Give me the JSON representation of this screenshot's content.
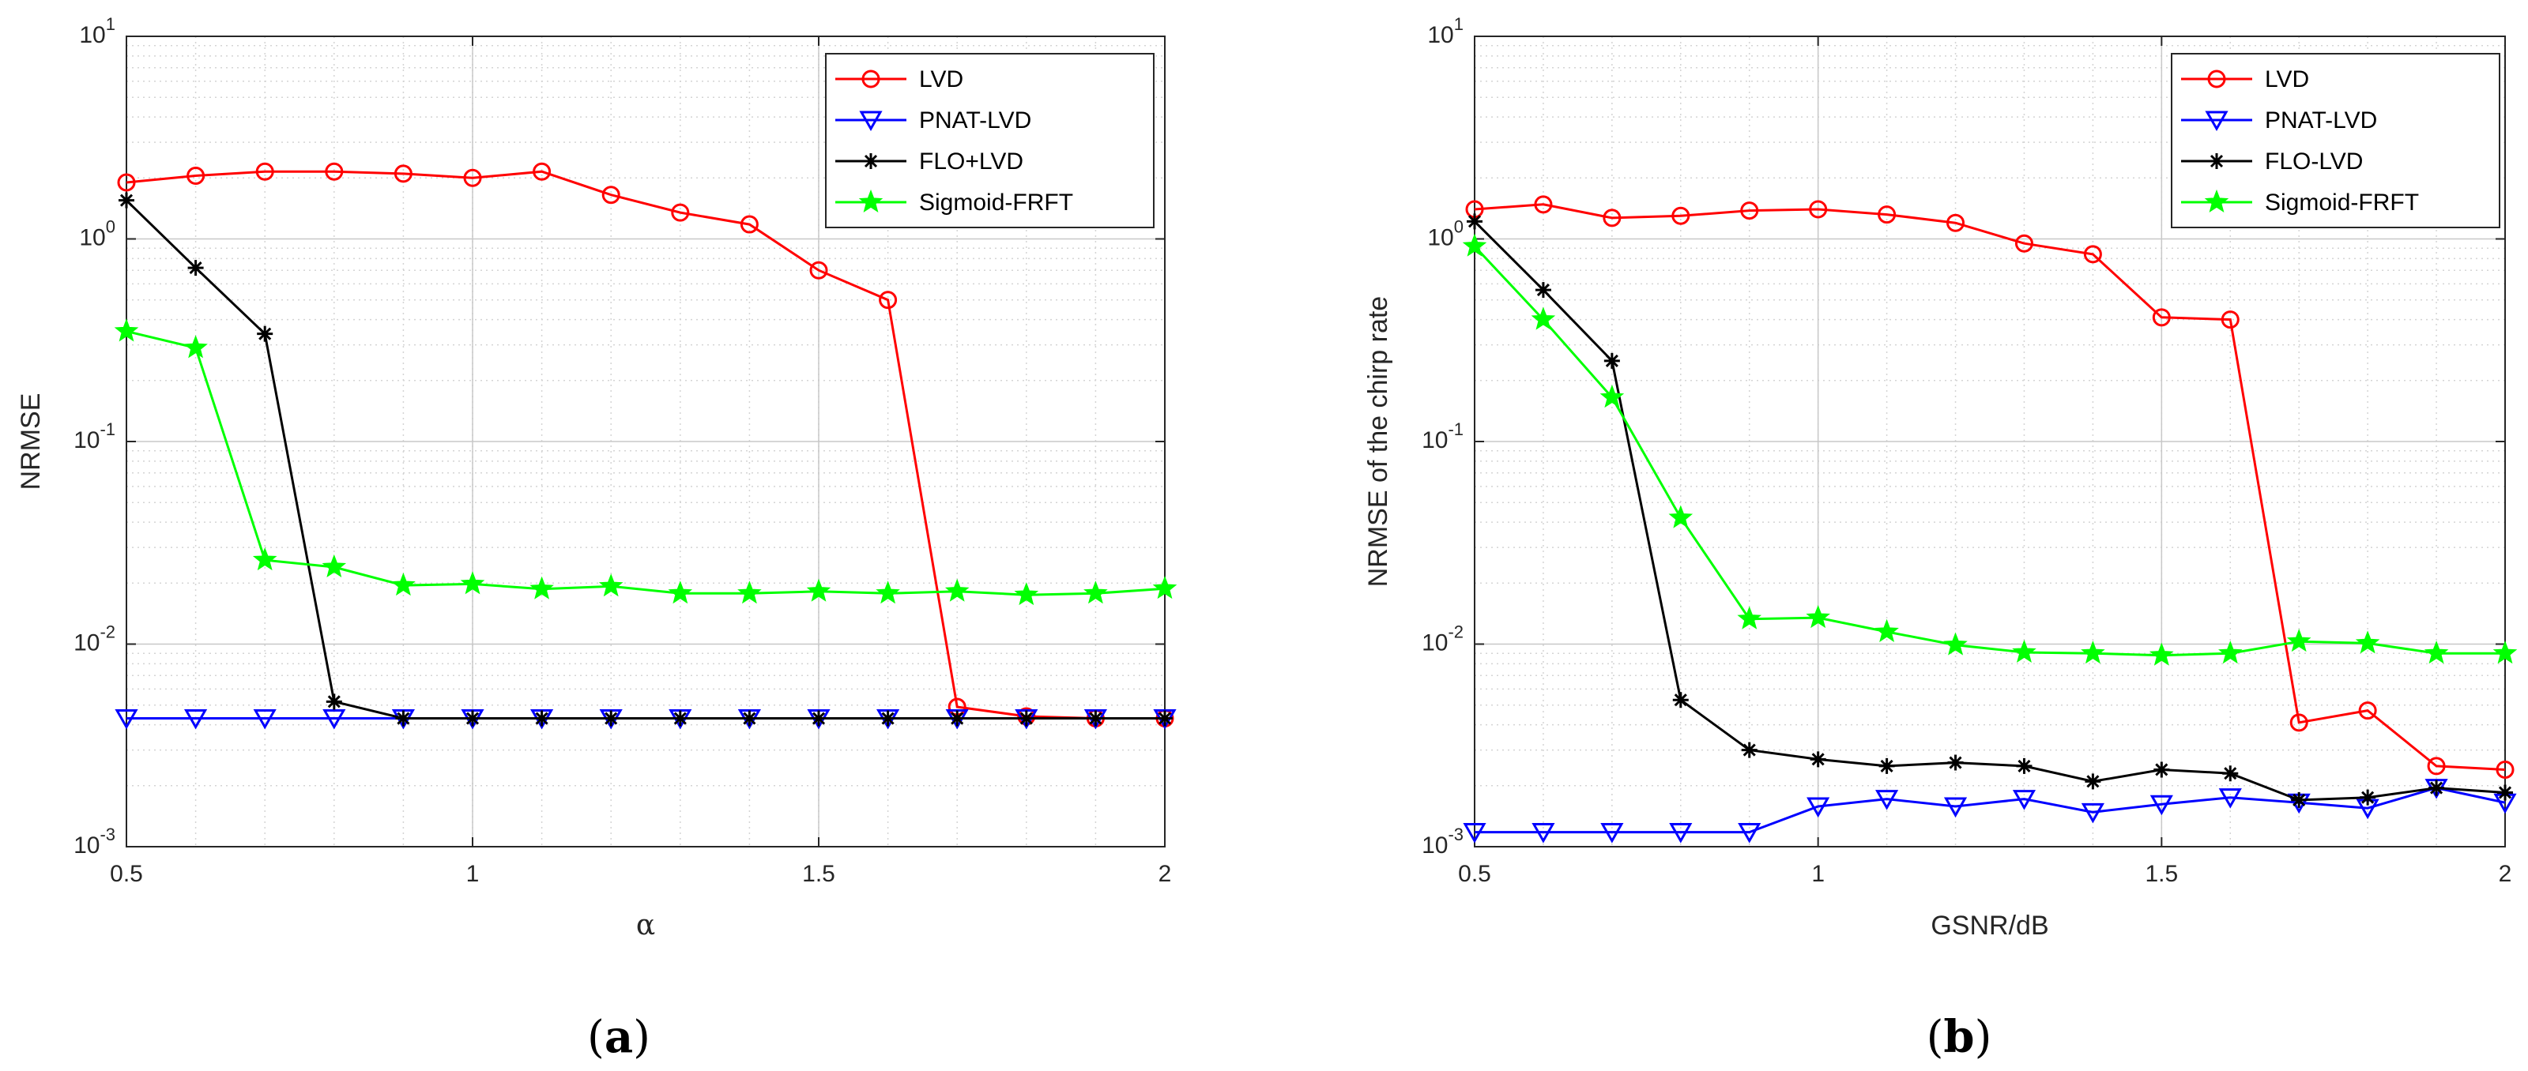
{
  "chart_data": [
    {
      "type": "line",
      "caption": {
        "open": "(",
        "letter": "a",
        "close": ")"
      },
      "xlabel": "α",
      "ylabel": "NRMSE",
      "yscale": "log",
      "xlim": [
        0.5,
        2
      ],
      "ylim": [
        0.001,
        10
      ],
      "grid": true,
      "legend_position": "top-right",
      "x_ticks": [
        0.5,
        1,
        1.5,
        2
      ],
      "x_tick_labels": [
        "0.5",
        "1",
        "1.5",
        "2"
      ],
      "y_ticks": [
        {
          "base": "10",
          "exp": "-3",
          "value": 0.001
        },
        {
          "base": "10",
          "exp": "-2",
          "value": 0.01
        },
        {
          "base": "10",
          "exp": "-1",
          "value": 0.1
        },
        {
          "base": "10",
          "exp": "0",
          "value": 1
        },
        {
          "base": "10",
          "exp": "1",
          "value": 10
        }
      ],
      "x": [
        0.5,
        0.6,
        0.7,
        0.8,
        0.9,
        1.0,
        1.1,
        1.2,
        1.3,
        1.4,
        1.5,
        1.6,
        1.7,
        1.8,
        1.9,
        2.0
      ],
      "series": [
        {
          "name": "LVD",
          "color": "#ff0000",
          "marker": "circle",
          "values": [
            1.9,
            2.05,
            2.15,
            2.15,
            2.1,
            2.0,
            2.15,
            1.65,
            1.35,
            1.18,
            0.7,
            0.5,
            0.0049,
            0.0044,
            0.0043,
            0.0043
          ]
        },
        {
          "name": "PNAT-LVD",
          "color": "#0000ff",
          "marker": "triangle-down",
          "values": [
            0.0043,
            0.0043,
            0.0043,
            0.0043,
            0.0043,
            0.0043,
            0.0043,
            0.0043,
            0.0043,
            0.0043,
            0.0043,
            0.0043,
            0.0043,
            0.0043,
            0.0043,
            0.0043
          ]
        },
        {
          "name": "FLO+LVD",
          "color": "#000000",
          "marker": "asterisk",
          "values": [
            1.55,
            0.72,
            0.34,
            0.0052,
            0.0043,
            0.0043,
            0.0043,
            0.0043,
            0.0043,
            0.0043,
            0.0043,
            0.0043,
            0.0043,
            0.0043,
            0.0043,
            0.0043
          ]
        },
        {
          "name": "Sigmoid-FRFT",
          "color": "#00ff00",
          "marker": "star",
          "values": [
            0.35,
            0.29,
            0.026,
            0.024,
            0.0195,
            0.0198,
            0.0187,
            0.0193,
            0.0178,
            0.0178,
            0.0182,
            0.0178,
            0.0182,
            0.0175,
            0.0178,
            0.0188
          ]
        }
      ]
    },
    {
      "type": "line",
      "caption": {
        "open": "(",
        "letter": "b",
        "close": ")"
      },
      "xlabel": "GSNR/dB",
      "ylabel": "NRMSE of the chirp rate",
      "yscale": "log",
      "xlim": [
        0.5,
        2
      ],
      "ylim": [
        0.001,
        10
      ],
      "grid": true,
      "legend_position": "top-right",
      "x_ticks": [
        0.5,
        1,
        1.5,
        2
      ],
      "x_tick_labels": [
        "0.5",
        "1",
        "1.5",
        "2"
      ],
      "y_ticks": [
        {
          "base": "10",
          "exp": "-3",
          "value": 0.001
        },
        {
          "base": "10",
          "exp": "-2",
          "value": 0.01
        },
        {
          "base": "10",
          "exp": "-1",
          "value": 0.1
        },
        {
          "base": "10",
          "exp": "0",
          "value": 1
        },
        {
          "base": "10",
          "exp": "1",
          "value": 10
        }
      ],
      "x": [
        0.5,
        0.6,
        0.7,
        0.8,
        0.9,
        1.0,
        1.1,
        1.2,
        1.3,
        1.4,
        1.5,
        1.6,
        1.7,
        1.8,
        1.9,
        2.0
      ],
      "series": [
        {
          "name": "LVD",
          "color": "#ff0000",
          "marker": "circle",
          "values": [
            1.4,
            1.48,
            1.27,
            1.3,
            1.38,
            1.4,
            1.32,
            1.2,
            0.95,
            0.84,
            0.41,
            0.4,
            0.0041,
            0.0047,
            0.0025,
            0.0024
          ]
        },
        {
          "name": "PNAT-LVD",
          "color": "#0000ff",
          "marker": "triangle-down",
          "values": [
            0.00118,
            0.00118,
            0.00118,
            0.00118,
            0.00118,
            0.00158,
            0.00172,
            0.00158,
            0.00172,
            0.00148,
            0.00162,
            0.00175,
            0.00165,
            0.00155,
            0.00195,
            0.00165
          ]
        },
        {
          "name": "FLO-LVD",
          "color": "#000000",
          "marker": "asterisk",
          "values": [
            1.22,
            0.56,
            0.25,
            0.0053,
            0.003,
            0.0027,
            0.0025,
            0.0026,
            0.0025,
            0.0021,
            0.0024,
            0.0023,
            0.0017,
            0.00175,
            0.00195,
            0.00185
          ]
        },
        {
          "name": "Sigmoid-FRFT",
          "color": "#00ff00",
          "marker": "star",
          "values": [
            0.92,
            0.4,
            0.165,
            0.042,
            0.0133,
            0.0135,
            0.0115,
            0.0099,
            0.0091,
            0.009,
            0.0088,
            0.009,
            0.0103,
            0.0101,
            0.009,
            0.009
          ]
        }
      ]
    }
  ]
}
